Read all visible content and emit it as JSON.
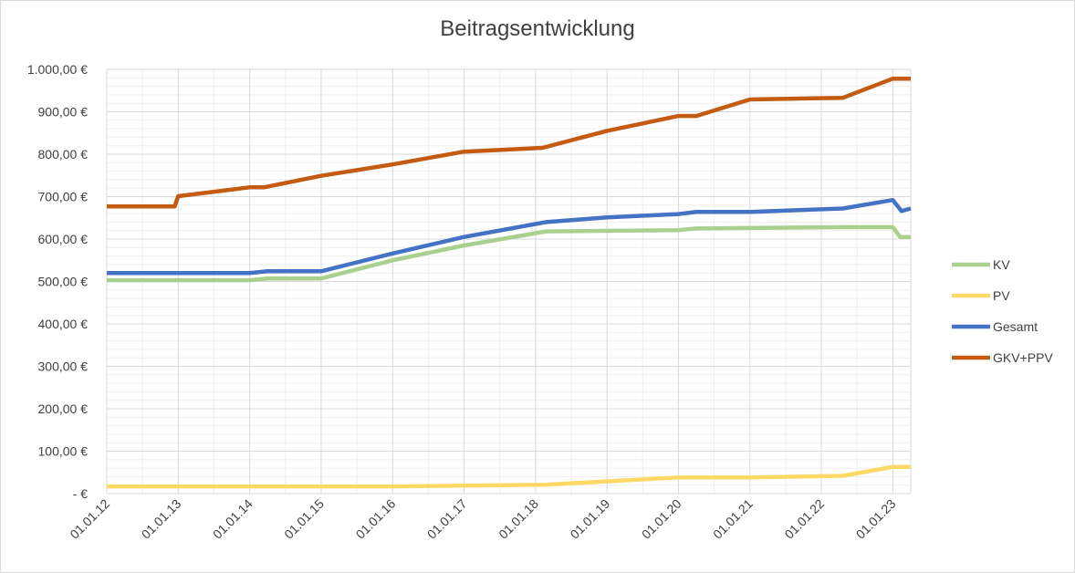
{
  "chart_data": {
    "type": "line",
    "title": "Beitragsentwicklung",
    "xlabel": "",
    "ylabel": "",
    "ylim": [
      0,
      1000
    ],
    "grid": true,
    "legend_position": "right",
    "y_ticks": [
      {
        "value": 0,
        "label": "-   €"
      },
      {
        "value": 100,
        "label": "100,00 €"
      },
      {
        "value": 200,
        "label": "200,00 €"
      },
      {
        "value": 300,
        "label": "300,00 €"
      },
      {
        "value": 400,
        "label": "400,00 €"
      },
      {
        "value": 500,
        "label": "500,00 €"
      },
      {
        "value": 600,
        "label": "600,00 €"
      },
      {
        "value": 700,
        "label": "700,00 €"
      },
      {
        "value": 800,
        "label": "800,00 €"
      },
      {
        "value": 900,
        "label": "900,00 €"
      },
      {
        "value": 1000,
        "label": "1.000,00 €"
      }
    ],
    "x_ticks": [
      {
        "value": 2012,
        "label": "01.01.12"
      },
      {
        "value": 2013,
        "label": "01.01.13"
      },
      {
        "value": 2014,
        "label": "01.01.14"
      },
      {
        "value": 2015,
        "label": "01.01.15"
      },
      {
        "value": 2016,
        "label": "01.01.16"
      },
      {
        "value": 2017,
        "label": "01.01.17"
      },
      {
        "value": 2018,
        "label": "01.01.18"
      },
      {
        "value": 2019,
        "label": "01.01.19"
      },
      {
        "value": 2020,
        "label": "01.01.20"
      },
      {
        "value": 2021,
        "label": "01.01.21"
      },
      {
        "value": 2022,
        "label": "01.01.22"
      },
      {
        "value": 2023,
        "label": "01.01.23"
      }
    ],
    "xlim": [
      2012,
      2023.25
    ],
    "series": [
      {
        "name": "KV",
        "color": "#a9d18e",
        "x": [
          2012,
          2014,
          2014.25,
          2015,
          2016,
          2017,
          2018.15,
          2020,
          2020.25,
          2022.3,
          2023,
          2023.1,
          2023.25
        ],
        "values": [
          503,
          503,
          507,
          507,
          550,
          585,
          618,
          621,
          625,
          628,
          628,
          605,
          605
        ]
      },
      {
        "name": "PV",
        "color": "#ffd966",
        "x": [
          2012,
          2016,
          2017,
          2018.15,
          2020,
          2021,
          2022.3,
          2023,
          2023.25
        ],
        "values": [
          17,
          17,
          19,
          21,
          38,
          38,
          42,
          63,
          63
        ]
      },
      {
        "name": "Gesamt",
        "color": "#4472c4",
        "x": [
          2012,
          2014,
          2014.25,
          2015,
          2016,
          2017,
          2018.15,
          2019,
          2020,
          2020.25,
          2021,
          2022.3,
          2023,
          2023.12,
          2023.25
        ],
        "values": [
          520,
          520,
          524,
          524,
          566,
          605,
          640,
          651,
          659,
          664,
          664,
          672,
          692,
          666,
          672
        ]
      },
      {
        "name": "GKV+PPV",
        "color": "#c55a11",
        "x": [
          2012,
          2012.95,
          2013,
          2014,
          2014.2,
          2015,
          2016,
          2017,
          2018.1,
          2019,
          2020,
          2020.25,
          2021,
          2022.3,
          2023,
          2023.25
        ],
        "values": [
          677,
          677,
          701,
          722,
          722,
          749,
          776,
          806,
          815,
          855,
          890,
          890,
          929,
          933,
          978,
          978
        ]
      }
    ]
  }
}
